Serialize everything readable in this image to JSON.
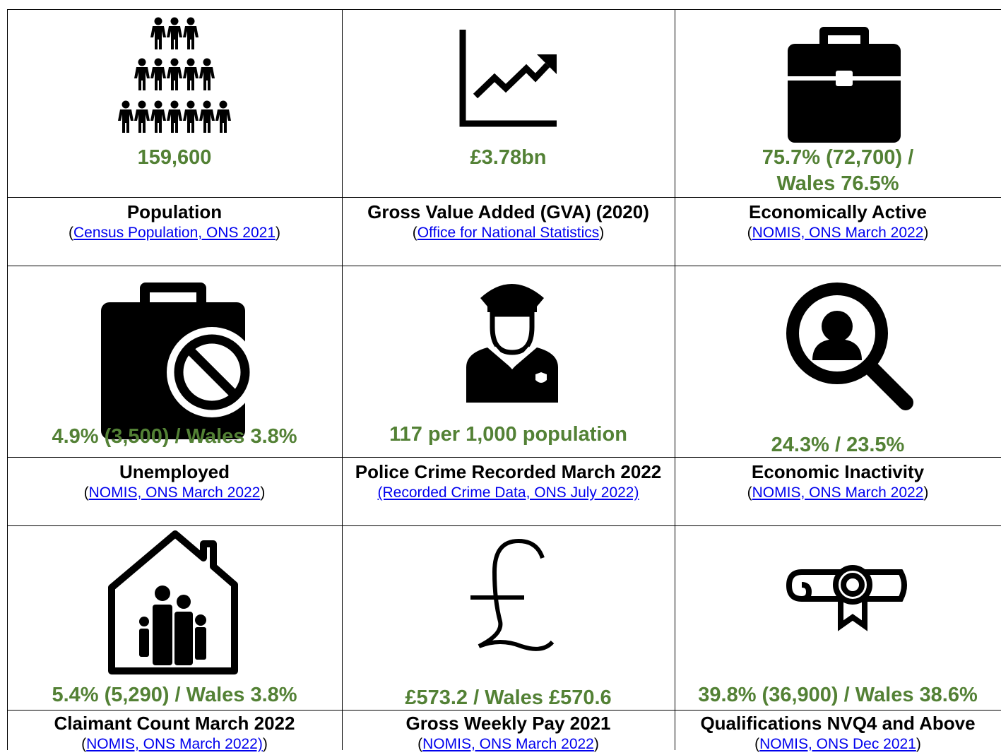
{
  "cells": [
    {
      "value": "159,600",
      "title": "Population",
      "source": [
        {
          "text": "("
        },
        {
          "text": "Census Population, ONS 2021",
          "link": true
        },
        {
          "text": ")"
        }
      ]
    },
    {
      "value": "£3.78bn",
      "title": "Gross Value Added (GVA) (2020)",
      "source": [
        {
          "text": "("
        },
        {
          "text": "Office for National Statistics",
          "link": true
        },
        {
          "text": ")"
        }
      ]
    },
    {
      "value": "75.7% (72,700) / Wales 76.5%",
      "title": "Economically Active",
      "source": [
        {
          "text": "("
        },
        {
          "text": "NOMIS, ONS March 2022",
          "link": true
        },
        {
          "text": ")"
        }
      ]
    },
    {
      "value": "4.9% (3,500) / Wales 3.8%",
      "title": "Unemployed",
      "source": [
        {
          "text": "("
        },
        {
          "text": "NOMIS, ONS March 2022",
          "link": true
        },
        {
          "text": ")"
        }
      ]
    },
    {
      "value": "117 per 1,000 population",
      "title": "Police Crime Recorded March 2022",
      "source": [
        {
          "text": "(Recorded Crime Data, ONS July 2022)",
          "link": true
        }
      ]
    },
    {
      "value": "24.3% / 23.5%",
      "title": "Economic Inactivity",
      "source": [
        {
          "text": "("
        },
        {
          "text": "NOMIS, ONS March 2022",
          "link": true
        },
        {
          "text": ")"
        }
      ]
    },
    {
      "value": "5.4% (5,290) / Wales 3.8%",
      "title": "Claimant Count March 2022",
      "source": [
        {
          "text": "("
        },
        {
          "text": "NOMIS, ONS March 2022)",
          "link": true
        },
        {
          "text": ")"
        }
      ]
    },
    {
      "value": "£573.2 / Wales £570.6",
      "title": "Gross Weekly Pay 2021",
      "source": [
        {
          "text": "("
        },
        {
          "text": "NOMIS, ONS March 2022",
          "link": true
        },
        {
          "text": ")"
        }
      ]
    },
    {
      "value": "39.8% (36,900) / Wales 38.6%",
      "title": "Qualifications NVQ4 and Above",
      "source": [
        {
          "text": "("
        },
        {
          "text": "NOMIS, ONS Dec 2021",
          "link": true
        },
        {
          "text": ")"
        }
      ]
    }
  ]
}
